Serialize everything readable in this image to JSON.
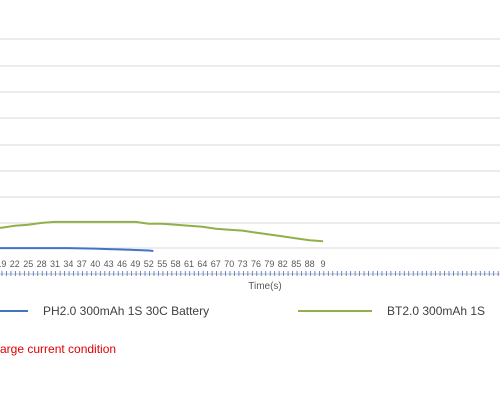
{
  "chart_data": {
    "type": "line",
    "xlabel": "Time(s)",
    "x_tick_labels": [
      "19",
      "22",
      "25",
      "28",
      "31",
      "34",
      "37",
      "40",
      "43",
      "46",
      "49",
      "52",
      "55",
      "58",
      "61",
      "64",
      "67",
      "70",
      "73",
      "76",
      "79",
      "82",
      "85",
      "88",
      "9"
    ],
    "grid": true,
    "series": [
      {
        "name": "PH2.0 300mAh 1S 30C Battery",
        "color": "#4472c4",
        "x": [
          16,
          19,
          22,
          25,
          28,
          31,
          34,
          37,
          40,
          43,
          46,
          49,
          52,
          53
        ],
        "y_rel": [
          0.3,
          0.3,
          0.3,
          0.3,
          0.3,
          0.3,
          0.3,
          0.27,
          0.25,
          0.2,
          0.15,
          0.1,
          0.05,
          0.0
        ]
      },
      {
        "name": "BT2.0 300mAh 1S",
        "color": "#8fb04a",
        "x": [
          16,
          19,
          22,
          25,
          28,
          31,
          34,
          37,
          40,
          43,
          46,
          49,
          52,
          55,
          58,
          61,
          64,
          67,
          70,
          73,
          76,
          79,
          82,
          85,
          88,
          91
        ],
        "y_rel": [
          2.4,
          2.4,
          2.6,
          2.7,
          2.9,
          3.0,
          3.0,
          3.0,
          3.0,
          3.0,
          3.0,
          3.0,
          2.8,
          2.8,
          2.7,
          2.6,
          2.5,
          2.3,
          2.2,
          2.1,
          1.9,
          1.7,
          1.5,
          1.3,
          1.1,
          1.0
        ]
      }
    ]
  },
  "legend": {
    "series1": "PH2.0 300mAh 1S 30C Battery",
    "series2": "BT2.0 300mAh 1S"
  },
  "caption": "arge current condition"
}
